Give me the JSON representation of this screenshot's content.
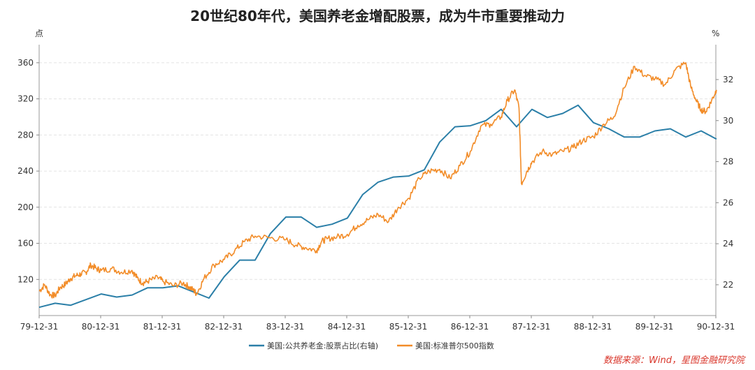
{
  "chart_data": {
    "type": "line",
    "title": "20世纪80年代，美国养老金增配股票，成为牛市重要推动力",
    "left_unit": "点",
    "right_unit": "%",
    "x_tick_labels": [
      "79-12-31",
      "80-12-31",
      "81-12-31",
      "82-12-31",
      "83-12-31",
      "84-12-31",
      "85-12-31",
      "86-12-31",
      "87-12-31",
      "88-12-31",
      "89-12-31",
      "90-12-31"
    ],
    "left_axis": {
      "min": 80,
      "max": 380,
      "ticks": [
        120,
        160,
        200,
        240,
        280,
        320,
        360
      ]
    },
    "right_axis": {
      "min": 20.5,
      "max": 33.7,
      "ticks": [
        22,
        24,
        26,
        28,
        30,
        32
      ]
    },
    "colors": {
      "pension": "#2b7fa8",
      "sp500": "#f28c28",
      "source": "#d9362b"
    },
    "series": [
      {
        "name": "美国:公共养老金:股票占比(右轴)",
        "axis": "right",
        "x": [
          1979.99,
          1980.25,
          1980.5,
          1981.0,
          1981.25,
          1981.5,
          1981.75,
          1982.0,
          1982.25,
          1982.5,
          1982.75,
          1983.0,
          1983.25,
          1983.5,
          1983.75,
          1984.0,
          1984.25,
          1984.5,
          1984.75,
          1985.0,
          1985.25,
          1985.5,
          1985.75,
          1986.0,
          1986.25,
          1986.5,
          1986.75,
          1987.0,
          1987.25,
          1987.5,
          1987.75,
          1988.0,
          1988.25,
          1988.5,
          1988.75,
          1989.0,
          1989.25,
          1989.5,
          1989.75,
          1990.0,
          1990.25,
          1990.5,
          1990.75,
          1991.0
        ],
        "values": [
          20.9,
          21.1,
          21.0,
          21.55,
          21.4,
          21.5,
          21.85,
          21.85,
          21.95,
          21.65,
          21.35,
          22.4,
          23.2,
          23.2,
          24.5,
          25.3,
          25.3,
          24.8,
          24.95,
          25.25,
          26.4,
          27.0,
          27.25,
          27.3,
          27.6,
          28.95,
          29.7,
          29.75,
          30.0,
          30.55,
          29.7,
          30.55,
          30.15,
          30.35,
          30.75,
          29.9,
          29.6,
          29.2,
          29.2,
          29.5,
          29.6,
          29.2,
          29.5,
          29.1
        ]
      },
      {
        "name": "美国:标准普尔500指数",
        "axis": "left",
        "x": [
          1979.99,
          1980.08,
          1980.17,
          1980.25,
          1980.33,
          1980.42,
          1980.5,
          1980.58,
          1980.67,
          1980.75,
          1980.83,
          1980.92,
          1981.0,
          1981.17,
          1981.33,
          1981.5,
          1981.58,
          1981.67,
          1981.75,
          1981.92,
          1982.0,
          1982.17,
          1982.33,
          1982.42,
          1982.5,
          1982.55,
          1982.67,
          1982.83,
          1983.0,
          1983.17,
          1983.33,
          1983.5,
          1983.75,
          1984.0,
          1984.17,
          1984.33,
          1984.5,
          1984.58,
          1984.67,
          1984.83,
          1985.0,
          1985.17,
          1985.33,
          1985.5,
          1985.67,
          1985.83,
          1986.0,
          1986.17,
          1986.33,
          1986.5,
          1986.67,
          1986.83,
          1987.0,
          1987.17,
          1987.33,
          1987.5,
          1987.6,
          1987.72,
          1987.79,
          1987.83,
          1987.92,
          1988.0,
          1988.17,
          1988.33,
          1988.5,
          1988.67,
          1988.83,
          1989.0,
          1989.17,
          1989.33,
          1989.5,
          1989.67,
          1989.83,
          1990.0,
          1990.17,
          1990.33,
          1990.5,
          1990.58,
          1990.67,
          1990.75,
          1990.83,
          1990.92,
          1991.0
        ],
        "values": [
          107,
          114,
          103,
          102,
          111,
          115,
          121,
          124,
          126,
          128,
          136,
          132,
          130,
          132,
          128,
          130,
          122,
          116,
          118,
          122,
          118,
          113,
          116,
          112,
          108,
          104,
          121,
          136,
          142,
          152,
          162,
          168,
          166,
          164,
          158,
          155,
          152,
          162,
          165,
          167,
          170,
          180,
          186,
          192,
          184,
          200,
          210,
          232,
          240,
          242,
          232,
          246,
          262,
          290,
          292,
          300,
          318,
          330,
          310,
          226,
          240,
          250,
          262,
          258,
          262,
          266,
          274,
          278,
          292,
          300,
          332,
          356,
          346,
          342,
          336,
          352,
          360,
          334,
          318,
          308,
          306,
          318,
          330
        ]
      }
    ],
    "source": "数据来源：Wind，星图金融研究院"
  }
}
